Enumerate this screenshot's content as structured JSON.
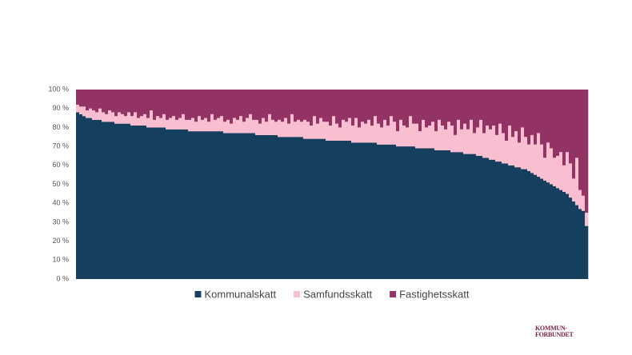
{
  "chart_data": {
    "type": "stacked-bar-100",
    "categories": [
      null,
      null,
      null,
      null,
      null,
      null,
      null,
      null,
      null,
      null,
      null,
      null,
      null,
      null,
      null,
      null,
      null,
      null,
      null,
      null,
      null,
      null,
      null,
      null,
      null,
      null,
      null,
      null,
      null,
      null,
      null,
      null,
      null,
      null,
      null,
      null,
      null,
      null,
      null,
      null,
      null,
      null,
      null,
      null,
      null,
      null,
      null,
      null,
      null,
      null,
      null,
      null,
      null,
      null,
      null,
      null,
      null,
      null,
      null,
      null,
      null,
      null,
      null,
      null,
      null,
      null,
      null,
      null,
      null,
      null,
      null,
      null,
      null,
      null,
      null,
      null,
      null,
      null,
      null,
      null,
      null,
      null,
      null,
      null,
      null,
      null,
      null,
      null,
      null,
      null,
      null,
      null,
      null,
      null,
      null,
      null,
      null,
      null,
      null,
      null,
      null,
      null,
      null,
      null,
      null,
      null,
      null,
      null,
      null,
      null,
      null,
      null,
      null,
      null,
      null,
      null,
      null,
      null,
      null,
      null,
      null,
      null,
      null,
      null,
      null,
      null,
      null,
      null,
      null,
      null,
      null,
      null,
      null,
      null,
      null,
      null,
      null,
      null,
      null,
      null,
      null,
      null,
      null,
      null,
      null,
      null,
      null,
      null,
      null,
      null,
      null,
      null,
      null,
      null,
      null,
      null,
      null,
      null,
      null,
      null
    ],
    "series": [
      {
        "name": "Kommunalskatt",
        "color": "#143f5f",
        "values": [
          88,
          87,
          86,
          85,
          85,
          84,
          84,
          84,
          83,
          83,
          83,
          83,
          82,
          82,
          82,
          82,
          82,
          81,
          81,
          81,
          81,
          81,
          80,
          80,
          80,
          80,
          80,
          80,
          79,
          79,
          79,
          79,
          79,
          79,
          79,
          78,
          78,
          78,
          78,
          78,
          78,
          78,
          78,
          78,
          78,
          78,
          77,
          77,
          77,
          77,
          77,
          77,
          77,
          77,
          77,
          77,
          76,
          76,
          76,
          76,
          76,
          76,
          76,
          75,
          75,
          75,
          75,
          75,
          75,
          75,
          75,
          74,
          74,
          74,
          74,
          74,
          74,
          74,
          73,
          73,
          73,
          73,
          73,
          73,
          73,
          73,
          72,
          72,
          72,
          72,
          72,
          72,
          72,
          72,
          71,
          71,
          71,
          71,
          71,
          71,
          70,
          70,
          70,
          70,
          70,
          70,
          69,
          69,
          69,
          69,
          69,
          69,
          68,
          68,
          68,
          68,
          68,
          67,
          67,
          67,
          67,
          66,
          66,
          66,
          66,
          65,
          65,
          64,
          64,
          63,
          63,
          62,
          62,
          61,
          61,
          60,
          60,
          59,
          59,
          58,
          58,
          57,
          56,
          55,
          54,
          53,
          52,
          51,
          50,
          49,
          48,
          47,
          46,
          45,
          43,
          41,
          39,
          37,
          36,
          28
        ]
      },
      {
        "name": "Samfundsskatt",
        "color": "#f9bfd0",
        "values": [
          4,
          4,
          5,
          4,
          5,
          5,
          4,
          6,
          5,
          4,
          6,
          5,
          4,
          6,
          5,
          4,
          6,
          5,
          7,
          4,
          5,
          6,
          5,
          9,
          4,
          6,
          5,
          7,
          5,
          6,
          7,
          5,
          6,
          8,
          5,
          6,
          7,
          5,
          8,
          6,
          7,
          5,
          9,
          6,
          7,
          8,
          6,
          7,
          5,
          8,
          7,
          9,
          6,
          8,
          10,
          7,
          8,
          6,
          9,
          7,
          11,
          8,
          7,
          9,
          8,
          10,
          7,
          12,
          8,
          9,
          8,
          10,
          9,
          7,
          12,
          8,
          11,
          9,
          10,
          8,
          13,
          9,
          7,
          11,
          10,
          12,
          9,
          13,
          8,
          11,
          10,
          12,
          9,
          14,
          11,
          9,
          13,
          10,
          15,
          12,
          8,
          14,
          11,
          10,
          16,
          12,
          13,
          9,
          15,
          11,
          12,
          14,
          10,
          16,
          13,
          11,
          15,
          14,
          9,
          17,
          12,
          16,
          13,
          18,
          11,
          15,
          19,
          13,
          17,
          16,
          18,
          14,
          20,
          16,
          12,
          21,
          15,
          19,
          13,
          22,
          17,
          14,
          20,
          16,
          23,
          18,
          12,
          21,
          19,
          15,
          17,
          20,
          14,
          22,
          18,
          12,
          25,
          10,
          8,
          7
        ]
      },
      {
        "name": "Fastighetsskatt",
        "color": "#933364",
        "values": [
          8,
          9,
          9,
          11,
          10,
          11,
          12,
          10,
          12,
          13,
          11,
          12,
          14,
          12,
          13,
          14,
          12,
          14,
          12,
          15,
          14,
          13,
          15,
          11,
          16,
          14,
          15,
          13,
          16,
          15,
          14,
          16,
          15,
          13,
          16,
          16,
          15,
          17,
          14,
          16,
          15,
          17,
          13,
          16,
          15,
          14,
          17,
          16,
          18,
          15,
          16,
          14,
          17,
          15,
          13,
          16,
          16,
          18,
          15,
          17,
          13,
          16,
          17,
          16,
          17,
          15,
          18,
          13,
          17,
          16,
          17,
          16,
          17,
          19,
          14,
          18,
          15,
          17,
          17,
          19,
          14,
          18,
          20,
          16,
          17,
          15,
          19,
          15,
          20,
          17,
          18,
          16,
          19,
          14,
          18,
          20,
          16,
          19,
          14,
          17,
          22,
          16,
          19,
          20,
          14,
          18,
          18,
          22,
          16,
          20,
          19,
          17,
          22,
          16,
          19,
          21,
          17,
          19,
          24,
          16,
          21,
          18,
          21,
          16,
          23,
          20,
          16,
          23,
          19,
          21,
          19,
          24,
          18,
          23,
          27,
          19,
          25,
          22,
          28,
          20,
          25,
          29,
          24,
          29,
          23,
          29,
          36,
          28,
          31,
          36,
          35,
          33,
          40,
          33,
          39,
          47,
          36,
          53,
          56,
          65
        ]
      }
    ],
    "ylim": [
      0,
      100
    ],
    "yticks": [
      {
        "value": 0,
        "label": "0 %"
      },
      {
        "value": 10,
        "label": "10 %"
      },
      {
        "value": 20,
        "label": "20 %"
      },
      {
        "value": 30,
        "label": "30 %"
      },
      {
        "value": 40,
        "label": "40 %"
      },
      {
        "value": 50,
        "label": "50 %"
      },
      {
        "value": 60,
        "label": "60 %"
      },
      {
        "value": 70,
        "label": "70 %"
      },
      {
        "value": 80,
        "label": "80 %"
      },
      {
        "value": 90,
        "label": "90 %"
      },
      {
        "value": 100,
        "label": "100 %"
      }
    ],
    "legend": "bottom"
  },
  "logo": {
    "line1": "KOMMUN-",
    "line2": "FORBUNDET"
  }
}
